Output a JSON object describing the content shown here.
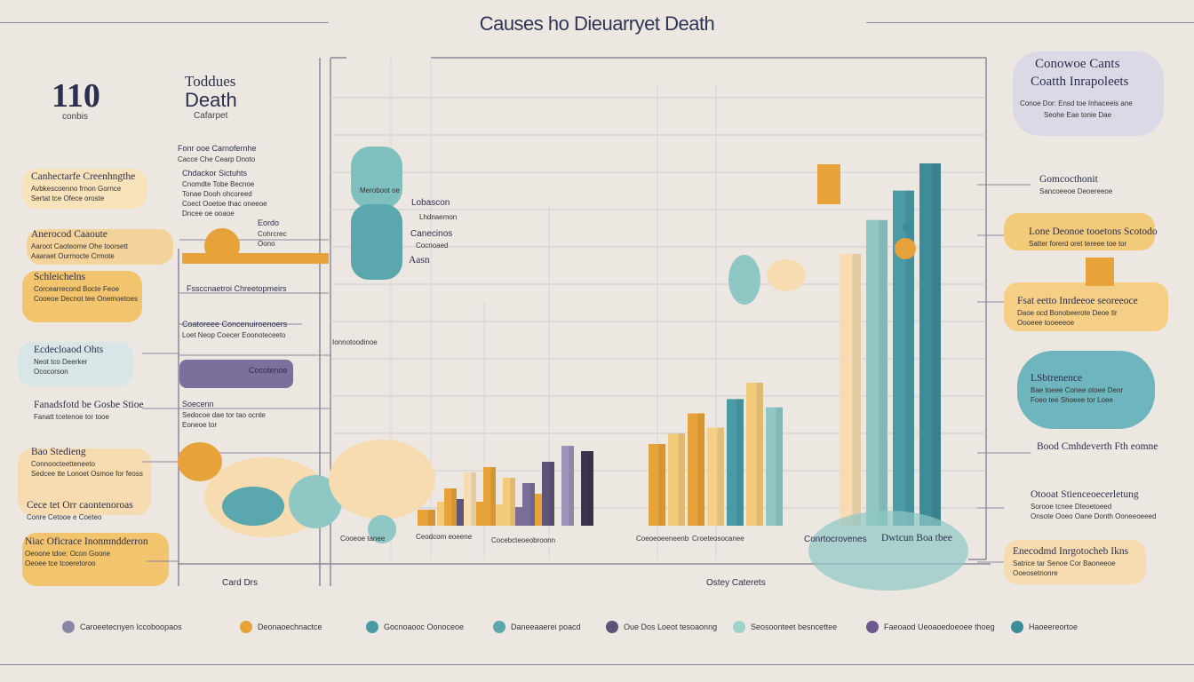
{
  "title": "Causes ho Dieuarryet Death",
  "bigstat": {
    "value": "110",
    "sub": "conbis"
  },
  "left_title": {
    "line1": "Toddues",
    "line2": "Death",
    "line3": "Cafarpet"
  },
  "right_title": {
    "line1": "Conowoe Cants",
    "line2": "Coatth Inrapoleets",
    "line3": "Conoe Dor: Ensd toe Inhaceeis ane",
    "line4": "Seohe Eae tonie Dae"
  },
  "colors": {
    "bg": "#ece8e1",
    "orange": "#e8a23a",
    "light_orange": "#f3c97a",
    "peach": "#f6dcb0",
    "teal": "#4b9ba6",
    "light_teal": "#8fc7c5",
    "purple": "#5e5478",
    "lavender": "#9d93b8",
    "dark": "#3b3550"
  },
  "left_labels": [
    {
      "head": "Canhectarfe Creenhngthe",
      "lines": [
        "Avbkescoenno frnon Gornce",
        "Sertat tce Ofece oroste"
      ]
    },
    {
      "head": "Anerocod Caaoute",
      "lines": [
        "Aaroot Caoteome Ohe toorsett",
        "Aaaraet Ourmocte Crmote"
      ]
    },
    {
      "head": "Schleichelns",
      "lines": [
        "Corcearrecond Bocte Feoe",
        "Cooeoe Decnot tee Onemoetoes"
      ]
    },
    {
      "head": "Ecdecloaod Ohts",
      "lines": [
        "Neot tco Deerker",
        "Ococorson"
      ]
    },
    {
      "head": "Fanadsfotd be Gosbe Stioe",
      "lines": [
        "Fanatt tcetenoe tor tooe"
      ]
    },
    {
      "head": "Bao Stedieng",
      "lines": [
        "Connoocteetteneeto",
        "Sedcee tte Lonoet Osmoe for feoss"
      ]
    },
    {
      "head": "Cece tet Orr caontenoroas",
      "lines": [
        "Conre Cetooe e Coeteo"
      ]
    },
    {
      "head": "Niac Oficrace Inonmndderron",
      "lines": [
        "Oeoone tdoe: Ocon Goone",
        "Oeoee tce tcoeretoroo"
      ]
    }
  ],
  "mid_labels": [
    {
      "head": "Fonr ooe Carnofernhe",
      "lines": [
        "Cacce Che Cearp Dnoto"
      ]
    },
    {
      "head": "Chdackor Sictuhts",
      "lines": [
        "Cnomdte Tobe Becnoe",
        "Tonae Dooh ohcoreed",
        "Coect Ooetoe thac oneeoe",
        "Dncee oe ooaoe"
      ]
    },
    {
      "head": "Eordo",
      "lines": [
        "Cohrcrec",
        "Oono"
      ]
    },
    {
      "head": "Fssccnaetroi Chreetopmeirs",
      "lines": []
    },
    {
      "head": "Coatoreee Concenuiroenoers",
      "lines": [
        "Loet Neop Coecer Eoonoteceeto"
      ]
    },
    {
      "head": "Cocotenoe",
      "lines": []
    },
    {
      "head": "Soecenn",
      "lines": [
        "Sedocoe dae tor tao ocnte",
        "Eoneoe tor"
      ]
    }
  ],
  "center_labels": {
    "a": "Meroboot oe",
    "b": "Lobascon",
    "c": "Lhdnaemon",
    "d": "Canecinos",
    "e": "Cocnoaed",
    "f": "Aasn",
    "g": "Ionnotoodinoe",
    "h": "Ceodcom eoeene",
    "i": "Cocebcteoeobroonn",
    "j": "Coeoeoeeneenb",
    "k": "Croeteosocanee",
    "l": "Cooeoe tanee",
    "m": "Conrtocrovenes",
    "n": "Dwtcun Boa tbee",
    "o": "Card Drs",
    "p": "Ostey Caterets"
  },
  "right_labels": [
    {
      "head": "Gomcocthonit",
      "lines": [
        "Sancoeeoe Deoereeoe"
      ]
    },
    {
      "head": "Lone Deonoe tooetons Scotodo",
      "lines": [
        "Satter forerd oret tereee toe tor"
      ]
    },
    {
      "head": "Fsat eetto Inrdeeoe seoreeoce",
      "lines": [
        "Daoe ocd Bonobeerote Deoe tlr",
        "Oooeee tooeeeoe"
      ]
    },
    {
      "head": "LSbtrenence",
      "lines": [
        "Bae toeee Conee otoee Denr",
        "Foeo tee Shoeee tor Loee"
      ]
    },
    {
      "head": "Bood Cmhdeverth Fth eomne",
      "lines": []
    },
    {
      "head": "Otooat Stienceoecerletung",
      "lines": [
        "Sorooe tcnee Dteoetoeed",
        "Onsote Ooeo Oane Donth Ooneeoeeed"
      ]
    },
    {
      "head": "Enecodmd Inrgotocheb Ikns",
      "lines": [
        "Satrice tar Senoe Cor Baoneeoe",
        "Ooeosetnonre"
      ]
    }
  ],
  "legend": [
    {
      "label": "Caroeetecnyen Iccoboopaos",
      "color": "#8a86a8",
      "icon": "moon-icon"
    },
    {
      "label": "Deonaoechnactce",
      "color": "#e8a23a",
      "icon": "dot-icon"
    },
    {
      "label": "Gocnoaooc Oonoceoe",
      "color": "#4b9ba6",
      "icon": "dot-icon"
    },
    {
      "label": "Daneeaaerei poacd",
      "color": "#5aa7ad",
      "icon": "dot-icon"
    },
    {
      "label": "Oue Dos Loeot tesoaonng",
      "color": "#5e5478",
      "icon": "dot-icon"
    },
    {
      "label": "Seosoonteet besncettee",
      "color": "#9fd1c9",
      "icon": "leaf-icon"
    },
    {
      "label": "Faeoaod Ueoaoedoeoee thoeg",
      "color": "#6a5a8e",
      "icon": "dot-icon"
    },
    {
      "label": "Haoeereortoe",
      "color": "#3e8c97",
      "icon": "dot-icon"
    }
  ],
  "chart_data": {
    "type": "bar",
    "xlabel": "",
    "ylabel": "",
    "series": [
      {
        "values": [
          6,
          9,
          10,
          9,
          8,
          7,
          12
        ]
      },
      {
        "values": [
          14,
          20,
          22,
          18,
          16,
          24,
          30,
          28
        ]
      },
      {
        "values": [
          40,
          45,
          55,
          48,
          62,
          70,
          58
        ]
      },
      {
        "values": [
          120,
          135,
          148,
          160
        ]
      }
    ]
  }
}
